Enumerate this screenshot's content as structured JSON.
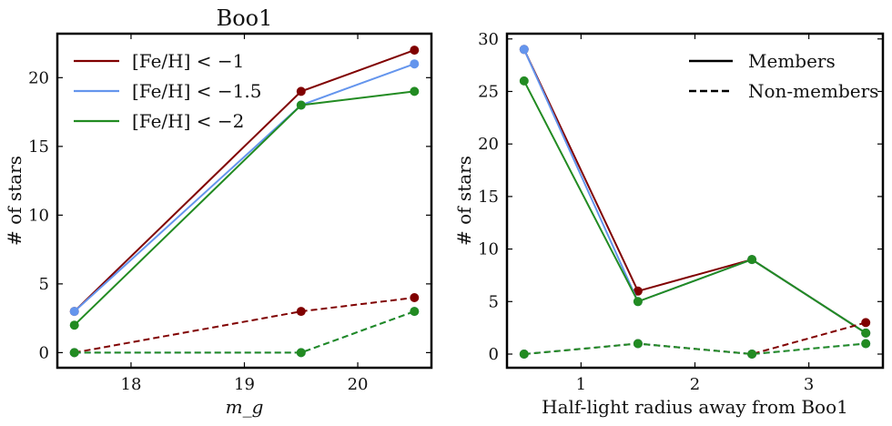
{
  "chart_data": [
    {
      "type": "line",
      "title": "Boo1",
      "xlabel": "m_g",
      "ylabel": "# of stars",
      "xlim": [
        17.35,
        20.65
      ],
      "ylim": [
        -1.1,
        23.2
      ],
      "x_ticks": [
        18,
        19,
        20
      ],
      "y_ticks": [
        0,
        5,
        10,
        15,
        20
      ],
      "grid": false,
      "legend": {
        "placement": "upper-left",
        "entries": [
          "[Fe/H] < −1",
          "[Fe/H] < −1.5",
          "[Fe/H] < −2"
        ]
      },
      "series": [
        {
          "name": "[Fe/H] < −1",
          "style": "solid",
          "color": "#800000",
          "x": [
            17.5,
            19.5,
            20.5
          ],
          "y": [
            3,
            19,
            22
          ]
        },
        {
          "name": "[Fe/H] < −1.5",
          "style": "solid",
          "color": "#6495ED",
          "x": [
            17.5,
            19.5,
            20.5
          ],
          "y": [
            3,
            18,
            21
          ]
        },
        {
          "name": "[Fe/H] < −2",
          "style": "solid",
          "color": "#228B22",
          "x": [
            17.5,
            19.5,
            20.5
          ],
          "y": [
            2,
            18,
            19
          ]
        },
        {
          "style": "dashed",
          "color": "#800000",
          "x": [
            17.5,
            19.5,
            20.5
          ],
          "y": [
            0,
            3,
            4
          ]
        },
        {
          "style": "dashed",
          "color": "#6495ED",
          "x": [
            17.5,
            19.5,
            20.5
          ],
          "y": [
            0,
            0,
            3
          ]
        },
        {
          "style": "dashed",
          "color": "#228B22",
          "x": [
            17.5,
            19.5,
            20.5
          ],
          "y": [
            0,
            0,
            3
          ]
        }
      ]
    },
    {
      "type": "line",
      "title": "",
      "xlabel": "Half-light radius away from Boo1",
      "ylabel": "# of stars",
      "xlim": [
        0.35,
        3.65
      ],
      "ylim": [
        -1.3,
        30.5
      ],
      "x_ticks": [
        1,
        2,
        3
      ],
      "y_ticks": [
        0,
        5,
        10,
        15,
        20,
        25,
        30
      ],
      "grid": false,
      "legend": {
        "placement": "upper-right",
        "entries": [
          "Members",
          "Non-members"
        ]
      },
      "series": [
        {
          "style": "solid",
          "color": "#800000",
          "x": [
            0.5,
            1.5,
            2.5,
            3.5
          ],
          "y": [
            29,
            6,
            9,
            2
          ]
        },
        {
          "style": "solid",
          "color": "#6495ED",
          "x": [
            0.5,
            1.5,
            2.5,
            3.5
          ],
          "y": [
            29,
            5,
            9,
            2
          ]
        },
        {
          "style": "solid",
          "color": "#228B22",
          "x": [
            0.5,
            1.5,
            2.5,
            3.5
          ],
          "y": [
            26,
            5,
            9,
            2
          ]
        },
        {
          "style": "dashed",
          "color": "#800000",
          "x": [
            0.5,
            1.5,
            2.5,
            3.5
          ],
          "y": [
            0,
            1,
            0,
            3
          ]
        },
        {
          "style": "dashed",
          "color": "#6495ED",
          "x": [
            0.5,
            1.5,
            2.5,
            3.5
          ],
          "y": [
            0,
            1,
            0,
            1
          ]
        },
        {
          "style": "dashed",
          "color": "#228B22",
          "x": [
            0.5,
            1.5,
            2.5,
            3.5
          ],
          "y": [
            0,
            1,
            0,
            1
          ]
        }
      ]
    }
  ]
}
